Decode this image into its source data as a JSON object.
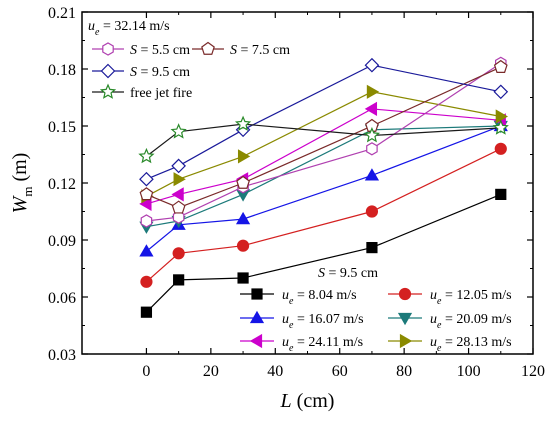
{
  "chart_data": {
    "type": "line",
    "xlabel": {
      "var": "L",
      "unit": " (cm)"
    },
    "ylabel": {
      "var": "W",
      "sub": "m",
      "unit": " (m)"
    },
    "xlim": [
      -20,
      120
    ],
    "ylim": [
      0.03,
      0.21
    ],
    "xticks": [
      0,
      20,
      40,
      60,
      80,
      100,
      120
    ],
    "yticks": [
      0.03,
      0.06,
      0.09,
      0.12,
      0.15,
      0.18,
      0.21
    ],
    "ytick_labels": [
      "0.03",
      "0.06",
      "0.09",
      "0.12",
      "0.15",
      "0.18",
      "0.21"
    ],
    "grid": false,
    "x": [
      0,
      10,
      30,
      70,
      110
    ],
    "legends": [
      {
        "placement": "top-left",
        "header": {
          "var": "u",
          "sub": "e",
          "text": " = 32.14 m/s"
        },
        "entries": [
          {
            "series": "s55",
            "var": "S",
            "text": " = 5.5 cm"
          },
          {
            "series": "s75",
            "var": "S",
            "text": " = 7.5 cm"
          },
          {
            "series": "s95",
            "var": "S",
            "text": " = 9.5 cm"
          },
          {
            "series": "free",
            "var": "",
            "text": "free jet fire"
          }
        ]
      },
      {
        "placement": "bottom-right",
        "header": {
          "var": "S",
          "sub": "",
          "text": " = 9.5 cm"
        },
        "entries": [
          {
            "series": "u804",
            "var": "u",
            "sub": "e",
            "text": " = 8.04 m/s"
          },
          {
            "series": "u1205",
            "var": "u",
            "sub": "e",
            "text": " = 12.05 m/s"
          },
          {
            "series": "u1607",
            "var": "u",
            "sub": "e",
            "text": " = 16.07 m/s"
          },
          {
            "series": "u2009",
            "var": "u",
            "sub": "e",
            "text": " = 20.09 m/s"
          },
          {
            "series": "u2411",
            "var": "u",
            "sub": "e",
            "text": " = 24.11 m/s"
          },
          {
            "series": "u2813",
            "var": "u",
            "sub": "e",
            "text": " = 28.13 m/s"
          }
        ]
      }
    ],
    "series": [
      {
        "id": "u804",
        "color": "#000000",
        "marker": "square",
        "filled": true,
        "values": [
          0.052,
          0.069,
          0.07,
          0.086,
          0.114
        ]
      },
      {
        "id": "u1205",
        "color": "#d42020",
        "marker": "circle",
        "filled": true,
        "values": [
          0.068,
          0.083,
          0.087,
          0.105,
          0.138
        ]
      },
      {
        "id": "u1607",
        "color": "#1515e6",
        "marker": "triangle-up",
        "filled": true,
        "values": [
          0.084,
          0.098,
          0.101,
          0.124,
          0.15
        ]
      },
      {
        "id": "u2009",
        "color": "#1c7a7a",
        "marker": "triangle-down",
        "filled": true,
        "values": [
          0.097,
          0.1,
          0.114,
          0.148,
          0.15
        ]
      },
      {
        "id": "u2411",
        "color": "#cc00cc",
        "marker": "triangle-left",
        "filled": true,
        "values": [
          0.109,
          0.114,
          0.122,
          0.159,
          0.153
        ]
      },
      {
        "id": "u2813",
        "color": "#8a8a00",
        "marker": "triangle-right",
        "filled": true,
        "values": [
          0.113,
          0.122,
          0.134,
          0.168,
          0.155
        ]
      },
      {
        "id": "s55",
        "color": "#b040b0",
        "marker": "hexagon",
        "filled": false,
        "values": [
          0.1,
          0.102,
          0.118,
          0.138,
          0.183
        ]
      },
      {
        "id": "s75",
        "color": "#7a2a2a",
        "marker": "pentagon",
        "filled": false,
        "values": [
          0.114,
          0.107,
          0.12,
          0.15,
          0.181
        ]
      },
      {
        "id": "s95",
        "color": "#1a1a9a",
        "marker": "diamond",
        "filled": false,
        "values": [
          0.122,
          0.129,
          0.148,
          0.182,
          0.168
        ]
      },
      {
        "id": "free",
        "color": "#1a1a1a",
        "marker": "star",
        "filled": false,
        "markerStroke": "#2a8a2a",
        "values": [
          0.134,
          0.147,
          0.151,
          0.145,
          0.149
        ]
      }
    ]
  }
}
